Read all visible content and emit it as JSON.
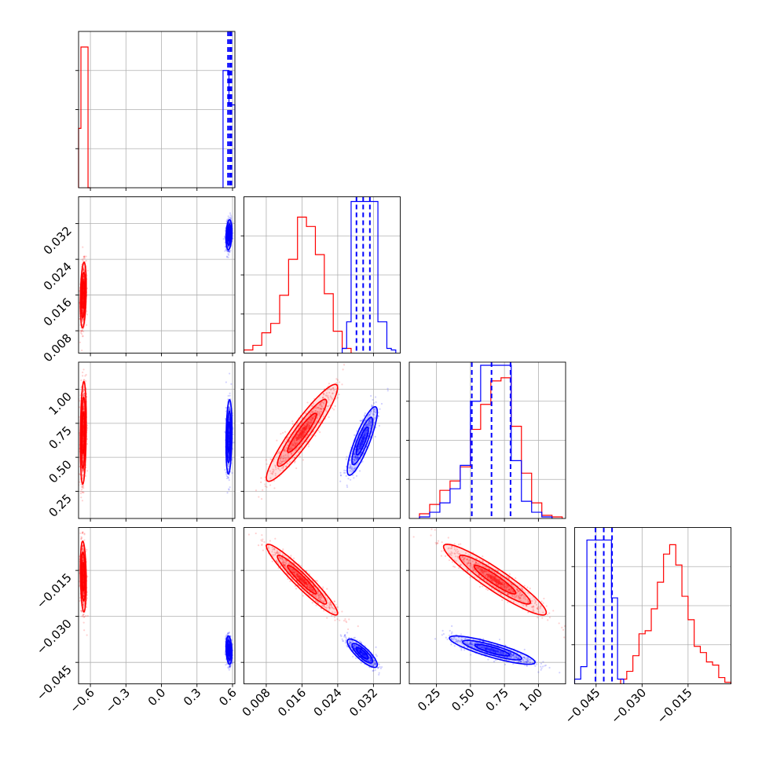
{
  "colors": {
    "red": "#ff0000",
    "blue": "#0000ff",
    "grid": "#b0b0b0",
    "axis": "#000000",
    "background": "#ffffff"
  },
  "chart_data": {
    "type": "corner",
    "grid": true,
    "parameters": [
      {
        "lim": [
          -0.7,
          0.62
        ],
        "ticks": [
          -0.6,
          -0.3,
          0.0,
          0.3,
          0.6
        ],
        "tick_labels": [
          "−0.6",
          "−0.3",
          "0.0",
          "0.3",
          "0.6"
        ]
      },
      {
        "lim": [
          0.003,
          0.038
        ],
        "ticks": [
          0.008,
          0.016,
          0.024,
          0.032
        ],
        "tick_labels": [
          "0.008",
          "0.016",
          "0.024",
          "0.032"
        ]
      },
      {
        "lim": [
          0.05,
          1.2
        ],
        "ticks": [
          0.25,
          0.5,
          0.75,
          1.0
        ],
        "tick_labels": [
          "0.25",
          "0.50",
          "0.75",
          "1.00"
        ]
      },
      {
        "lim": [
          -0.052,
          -0.001
        ],
        "ticks": [
          -0.045,
          -0.03,
          -0.015
        ],
        "tick_labels": [
          "−0.045",
          "−0.030",
          "−0.015"
        ]
      }
    ],
    "histograms": [
      {
        "param": 0,
        "ymax": 1.0,
        "series": [
          {
            "name": "",
            "color": "red",
            "edges": [
              -0.7,
              -0.68,
              -0.66,
              -0.64,
              -0.62,
              -0.6
            ],
            "values": [
              0.38,
              0.9,
              0.9,
              0.9,
              0.0
            ]
          },
          {
            "name": "",
            "color": "blue",
            "edges": [
              0.52,
              0.545,
              0.57,
              0.595,
              0.62
            ],
            "values": [
              0.75,
              0.75,
              0.53,
              0.53
            ]
          }
        ],
        "quantiles": [
          0.562,
          0.577,
          0.59
        ]
      },
      {
        "param": 1,
        "ymax": 1.0,
        "series": [
          {
            "name": "",
            "color": "red",
            "edges": [
              0.003,
              0.005,
              0.007,
              0.009,
              0.011,
              0.013,
              0.015,
              0.017,
              0.019,
              0.021,
              0.023,
              0.025,
              0.027
            ],
            "values": [
              0.02,
              0.05,
              0.13,
              0.19,
              0.37,
              0.6,
              0.87,
              0.81,
              0.63,
              0.38,
              0.14,
              0.03
            ]
          },
          {
            "name": "",
            "color": "blue",
            "edges": [
              0.025,
              0.026,
              0.027,
              0.028,
              0.029,
              0.03,
              0.031,
              0.032,
              0.033,
              0.034,
              0.035,
              0.036,
              0.037
            ],
            "values": [
              0.03,
              0.2,
              0.97,
              0.97,
              0.97,
              0.97,
              0.97,
              0.97,
              0.2,
              0.2,
              0.03,
              0.02
            ]
          }
        ],
        "quantiles": [
          0.0282,
          0.0297,
          0.0312
        ]
      },
      {
        "param": 2,
        "ymax": 1.0,
        "series": [
          {
            "name": "",
            "color": "red",
            "edges": [
              0.125,
              0.2,
              0.275,
              0.35,
              0.425,
              0.5,
              0.575,
              0.65,
              0.725,
              0.8,
              0.875,
              0.95,
              1.025,
              1.1,
              1.175
            ],
            "values": [
              0.03,
              0.09,
              0.18,
              0.24,
              0.33,
              0.57,
              0.73,
              0.88,
              0.9,
              0.59,
              0.29,
              0.1,
              0.02,
              0.01
            ]
          },
          {
            "name": "",
            "color": "blue",
            "edges": [
              0.125,
              0.2,
              0.275,
              0.35,
              0.425,
              0.5,
              0.575,
              0.65,
              0.725,
              0.8,
              0.875,
              0.95,
              1.025,
              1.1
            ],
            "values": [
              0.01,
              0.04,
              0.1,
              0.19,
              0.34,
              0.75,
              0.98,
              0.98,
              0.98,
              0.37,
              0.11,
              0.04,
              0.01
            ]
          }
        ],
        "quantiles": [
          0.51,
          0.655,
          0.795
        ]
      },
      {
        "param": 3,
        "ymax": 1.0,
        "series": [
          {
            "name": "",
            "color": "red",
            "edges": [
              -0.037,
              -0.035,
              -0.033,
              -0.031,
              -0.029,
              -0.027,
              -0.025,
              -0.023,
              -0.021,
              -0.019,
              -0.017,
              -0.015,
              -0.013,
              -0.011,
              -0.009,
              -0.007,
              -0.005,
              -0.003,
              -0.001
            ],
            "values": [
              0.03,
              0.08,
              0.18,
              0.32,
              0.34,
              0.48,
              0.65,
              0.83,
              0.89,
              0.76,
              0.56,
              0.41,
              0.24,
              0.2,
              0.14,
              0.12,
              0.04,
              0.01
            ]
          },
          {
            "name": "",
            "color": "blue",
            "edges": [
              -0.052,
              -0.05,
              -0.048,
              -0.046,
              -0.044,
              -0.042,
              -0.04,
              -0.038,
              -0.036
            ],
            "values": [
              0.03,
              0.11,
              0.92,
              0.92,
              0.92,
              0.92,
              0.55,
              0.03
            ]
          }
        ],
        "quantiles": [
          -0.0452,
          -0.0425,
          -0.0398
        ]
      }
    ],
    "scatter_panels": [
      {
        "x": 0,
        "y": 1,
        "series": [
          {
            "color": "red",
            "center": [
              -0.66,
              0.016
            ],
            "sd": [
              0.012,
              0.0035
            ],
            "rho": 0.25
          },
          {
            "color": "blue",
            "center": [
              0.57,
              0.0295
            ],
            "sd": [
              0.012,
              0.0016
            ],
            "rho": 0.2
          }
        ]
      },
      {
        "x": 0,
        "y": 2,
        "series": [
          {
            "color": "red",
            "center": [
              -0.66,
              0.68
            ],
            "sd": [
              0.012,
              0.18
            ],
            "rho": 0.2
          },
          {
            "color": "blue",
            "center": [
              0.57,
              0.65
            ],
            "sd": [
              0.012,
              0.13
            ],
            "rho": 0.2
          }
        ]
      },
      {
        "x": 0,
        "y": 3,
        "series": [
          {
            "color": "red",
            "center": [
              -0.66,
              -0.017
            ],
            "sd": [
              0.012,
              0.0055
            ],
            "rho": -0.2
          },
          {
            "color": "blue",
            "center": [
              0.57,
              -0.041
            ],
            "sd": [
              0.012,
              0.0022
            ],
            "rho": -0.2
          }
        ]
      },
      {
        "x": 1,
        "y": 2,
        "series": [
          {
            "color": "red",
            "center": [
              0.016,
              0.68
            ],
            "sd": [
              0.0038,
              0.17
            ],
            "rho": 0.93
          },
          {
            "color": "blue",
            "center": [
              0.0295,
              0.62
            ],
            "sd": [
              0.0016,
              0.12
            ],
            "rho": 0.85
          }
        ]
      },
      {
        "x": 1,
        "y": 3,
        "series": [
          {
            "color": "red",
            "center": [
              0.016,
              -0.018
            ],
            "sd": [
              0.0038,
              0.0055
            ],
            "rho": -0.95
          },
          {
            "color": "blue",
            "center": [
              0.0295,
              -0.042
            ],
            "sd": [
              0.0016,
              0.0022
            ],
            "rho": -0.82
          }
        ]
      },
      {
        "x": 2,
        "y": 3,
        "series": [
          {
            "color": "red",
            "center": [
              0.68,
              -0.018
            ],
            "sd": [
              0.18,
              0.0055
            ],
            "rho": -0.93
          },
          {
            "color": "blue",
            "center": [
              0.66,
              -0.041
            ],
            "sd": [
              0.15,
              0.0022
            ],
            "rho": -0.85
          }
        ]
      }
    ]
  }
}
